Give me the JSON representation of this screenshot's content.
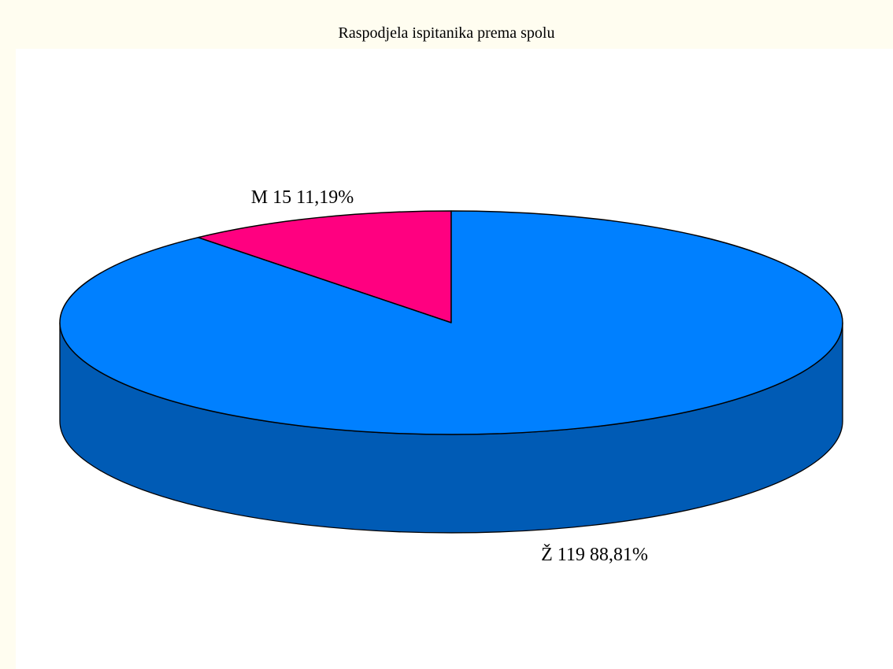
{
  "chart_data": {
    "type": "pie",
    "title": "Raspodjela ispitanika prema spolu",
    "slices": [
      {
        "category": "M",
        "count": 15,
        "percent_label": "11,19%",
        "label": "M 15 11,19%",
        "color": "#ff0080",
        "side_color": "#c00060"
      },
      {
        "category": "Ž",
        "count": 119,
        "percent_label": "88,81%",
        "label": "Ž 119 88,81%",
        "color": "#0080ff",
        "side_color": "#005bb5"
      }
    ],
    "style": "3d",
    "legend": "none"
  }
}
